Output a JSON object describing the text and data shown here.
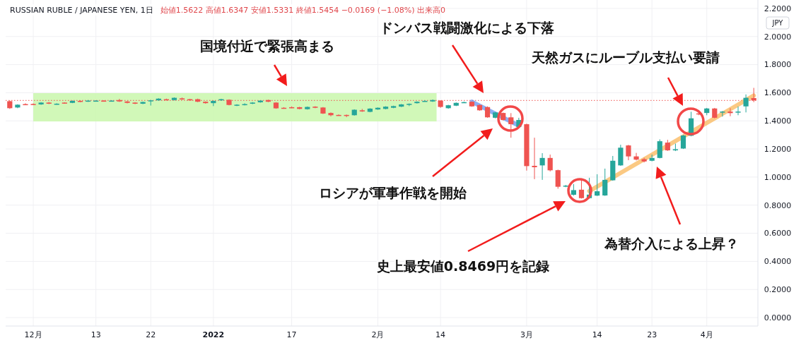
{
  "chart_data": {
    "type": "candlestick",
    "title": "RUSSIAN RUBLE / JAPANESE YEN, 1日",
    "subtitle": "始値1.5622 高値1.6347 安値1.5331 終値1.5454 −0.0169 (−1.08%) 出来高0",
    "ylabel": "JPY",
    "categories": [
      null,
      null,
      null,
      "12月",
      null,
      null,
      null,
      null,
      null,
      null,
      null,
      "13",
      null,
      null,
      null,
      null,
      null,
      null,
      "22",
      null,
      null,
      null,
      null,
      null,
      null,
      null,
      "2022",
      null,
      null,
      null,
      null,
      null,
      null,
      null,
      null,
      null,
      "17",
      null,
      null,
      null,
      null,
      null,
      null,
      null,
      null,
      null,
      null,
      "2月",
      null,
      null,
      null,
      null,
      null,
      null,
      null,
      "14",
      null,
      null,
      null,
      null,
      null,
      null,
      null,
      null,
      null,
      null,
      "3月",
      null,
      null,
      null,
      null,
      null,
      null,
      null,
      null,
      "14",
      null,
      null,
      null,
      null,
      null,
      null,
      "23",
      null,
      null,
      null,
      null,
      null,
      null,
      "4月",
      null,
      null,
      null,
      null,
      null,
      null
    ],
    "ohlc": [
      [
        1.54,
        1.545,
        1.485,
        1.49
      ],
      [
        1.495,
        1.518,
        1.49,
        1.515
      ],
      [
        1.519,
        1.525,
        1.512,
        1.518
      ],
      [
        1.52,
        1.524,
        1.514,
        1.516
      ],
      [
        1.517,
        1.533,
        1.514,
        1.53
      ],
      [
        1.53,
        1.534,
        1.519,
        1.522
      ],
      [
        1.518,
        1.525,
        1.515,
        1.522
      ],
      [
        1.53,
        1.532,
        1.523,
        1.526
      ],
      [
        1.528,
        1.545,
        1.526,
        1.542
      ],
      [
        1.542,
        1.546,
        1.533,
        1.536
      ],
      [
        1.538,
        1.548,
        1.535,
        1.544
      ],
      [
        1.541,
        1.547,
        1.538,
        1.544
      ],
      [
        1.544,
        1.547,
        1.538,
        1.541
      ],
      [
        1.54,
        1.547,
        1.537,
        1.544
      ],
      [
        1.548,
        1.556,
        1.535,
        1.538
      ],
      [
        1.538,
        1.541,
        1.524,
        1.528
      ],
      [
        1.53,
        1.533,
        1.519,
        1.522
      ],
      [
        1.522,
        1.537,
        1.519,
        1.534
      ],
      [
        1.54,
        1.549,
        1.509,
        1.546
      ],
      [
        1.546,
        1.561,
        1.543,
        1.558
      ],
      [
        1.554,
        1.558,
        1.545,
        1.548
      ],
      [
        1.548,
        1.567,
        1.545,
        1.564
      ],
      [
        1.56,
        1.566,
        1.549,
        1.552
      ],
      [
        1.554,
        1.557,
        1.543,
        1.546
      ],
      [
        1.554,
        1.558,
        1.533,
        1.536
      ],
      [
        1.536,
        1.539,
        1.522,
        1.526
      ],
      [
        1.526,
        1.545,
        1.505,
        1.542
      ],
      [
        1.546,
        1.557,
        1.543,
        1.554
      ],
      [
        1.55,
        1.553,
        1.51,
        1.513
      ],
      [
        1.509,
        1.518,
        1.505,
        1.515
      ],
      [
        1.513,
        1.525,
        1.51,
        1.519
      ],
      [
        1.522,
        1.533,
        1.519,
        1.53
      ],
      [
        1.532,
        1.547,
        1.529,
        1.544
      ],
      [
        1.548,
        1.551,
        1.533,
        1.536
      ],
      [
        1.53,
        1.533,
        1.486,
        1.489
      ],
      [
        1.493,
        1.497,
        1.486,
        1.492
      ],
      [
        1.497,
        1.503,
        1.49,
        1.496
      ],
      [
        1.497,
        1.5,
        1.482,
        1.485
      ],
      [
        1.483,
        1.502,
        1.48,
        1.499
      ],
      [
        1.501,
        1.504,
        1.49,
        1.493
      ],
      [
        1.495,
        1.498,
        1.449,
        1.452
      ],
      [
        1.456,
        1.46,
        1.432,
        1.44
      ],
      [
        1.442,
        1.446,
        1.437,
        1.441
      ],
      [
        1.442,
        1.445,
        1.426,
        1.441
      ],
      [
        1.44,
        1.482,
        1.437,
        1.479
      ],
      [
        1.475,
        1.485,
        1.464,
        1.467
      ],
      [
        1.464,
        1.49,
        1.461,
        1.487
      ],
      [
        1.481,
        1.496,
        1.478,
        1.493
      ],
      [
        1.485,
        1.504,
        1.482,
        1.501
      ],
      [
        1.493,
        1.508,
        1.49,
        1.505
      ],
      [
        1.501,
        1.52,
        1.498,
        1.517
      ],
      [
        1.52,
        1.524,
        1.505,
        1.521
      ],
      [
        1.526,
        1.539,
        1.523,
        1.536
      ],
      [
        1.541,
        1.546,
        1.538,
        1.542
      ],
      [
        1.538,
        1.552,
        1.535,
        1.548
      ],
      [
        1.544,
        1.547,
        1.493,
        1.499
      ],
      [
        1.49,
        1.514,
        1.486,
        1.511
      ],
      [
        1.508,
        1.531,
        1.505,
        1.528
      ],
      [
        1.532,
        1.537,
        1.529,
        1.533
      ],
      [
        1.536,
        1.539,
        1.5,
        1.503
      ],
      [
        1.513,
        1.516,
        1.472,
        1.475
      ],
      [
        1.498,
        1.503,
        1.422,
        1.425
      ],
      [
        1.422,
        1.463,
        1.418,
        1.46
      ],
      [
        1.456,
        1.459,
        1.402,
        1.406
      ],
      [
        1.425,
        1.455,
        1.28,
        1.376
      ],
      [
        1.357,
        1.422,
        1.352,
        1.406
      ],
      [
        1.376,
        1.38,
        1.046,
        1.078
      ],
      [
        1.08,
        1.28,
        0.985,
        1.07
      ],
      [
        1.083,
        1.17,
        0.98,
        1.136
      ],
      [
        1.136,
        1.16,
        1.04,
        1.048
      ],
      [
        1.049,
        1.053,
        0.917,
        0.931
      ],
      [
        0.933,
        0.944,
        0.928,
        0.939
      ],
      [
        0.874,
        0.95,
        0.868,
        0.907
      ],
      [
        0.91,
        0.99,
        0.8469,
        0.85
      ],
      [
        0.85,
        0.995,
        0.846,
        0.875
      ],
      [
        0.868,
        1.02,
        0.865,
        0.899
      ],
      [
        0.869,
        1.06,
        0.866,
        0.98
      ],
      [
        0.977,
        1.15,
        0.974,
        1.116
      ],
      [
        1.083,
        1.23,
        1.08,
        1.209
      ],
      [
        1.225,
        1.229,
        1.12,
        1.147
      ],
      [
        1.147,
        1.172,
        1.118,
        1.124
      ],
      [
        1.127,
        1.137,
        1.104,
        1.111
      ],
      [
        1.116,
        1.16,
        1.112,
        1.136
      ],
      [
        1.136,
        1.268,
        1.133,
        1.255
      ],
      [
        1.245,
        1.265,
        1.186,
        1.19
      ],
      [
        1.19,
        1.238,
        1.185,
        1.198
      ],
      [
        1.203,
        1.3,
        1.2,
        1.296
      ],
      [
        1.294,
        1.465,
        1.29,
        1.418
      ],
      [
        1.453,
        1.475,
        1.44,
        1.448
      ],
      [
        1.456,
        1.492,
        1.44,
        1.488
      ],
      [
        1.488,
        1.492,
        1.418,
        1.422
      ],
      [
        1.46,
        1.47,
        1.43,
        1.466
      ],
      [
        1.466,
        1.49,
        1.433,
        1.455
      ],
      [
        1.46,
        1.502,
        1.44,
        1.466
      ],
      [
        1.503,
        1.588,
        1.46,
        1.564
      ],
      [
        1.5622,
        1.6347,
        1.5331,
        1.5454
      ]
    ],
    "colors": [
      "#ef5350",
      "#26a69a",
      "#ef5350",
      "#ef5350",
      "#26a69a",
      "#ef5350",
      "#26a69a",
      "#ef5350",
      "#26a69a",
      "#ef5350",
      "#26a69a",
      "#26a69a",
      "#ef5350",
      "#26a69a",
      "#ef5350",
      "#ef5350",
      "#ef5350",
      "#26a69a",
      "#26a69a",
      "#26a69a",
      "#ef5350",
      "#26a69a",
      "#ef5350",
      "#ef5350",
      "#ef5350",
      "#ef5350",
      "#26a69a",
      "#26a69a",
      "#ef5350",
      "#26a69a",
      "#26a69a",
      "#26a69a",
      "#26a69a",
      "#ef5350",
      "#ef5350",
      "#ef5350",
      "#ef5350",
      "#ef5350",
      "#26a69a",
      "#ef5350",
      "#ef5350",
      "#ef5350",
      "#ef5350",
      "#ef5350",
      "#26a69a",
      "#ef5350",
      "#26a69a",
      "#26a69a",
      "#26a69a",
      "#26a69a",
      "#26a69a",
      "#26a69a",
      "#26a69a",
      "#26a69a",
      "#26a69a",
      "#ef5350",
      "#26a69a",
      "#26a69a",
      "#26a69a",
      "#ef5350",
      "#ef5350",
      "#ef5350",
      "#26a69a",
      "#ef5350",
      "#ef5350",
      "#26a69a",
      "#ef5350",
      "#ef5350",
      "#26a69a",
      "#ef5350",
      "#ef5350",
      "#26a69a",
      "#26a69a",
      "#ef5350",
      "#26a69a",
      "#26a69a",
      "#26a69a",
      "#26a69a",
      "#26a69a",
      "#ef5350",
      "#ef5350",
      "#ef5350",
      "#26a69a",
      "#26a69a",
      "#ef5350",
      "#26a69a",
      "#26a69a",
      "#26a69a",
      "#ef5350",
      "#26a69a",
      "#ef5350",
      "#26a69a",
      "#ef5350",
      "#26a69a",
      "#26a69a",
      "#ef5350"
    ],
    "series": [
      {
        "type": "line",
        "color": "#5b8def",
        "values": [
          null,
          null,
          null,
          null,
          null,
          null,
          null,
          null,
          null,
          null,
          null,
          null,
          null,
          null,
          null,
          null,
          null,
          null,
          null,
          null,
          null,
          null,
          null,
          null,
          null,
          null,
          null,
          null,
          null,
          null,
          null,
          null,
          null,
          null,
          null,
          null,
          null,
          null,
          null,
          null,
          null,
          null,
          null,
          null,
          null,
          null,
          null,
          null,
          null,
          null,
          null,
          null,
          null,
          null,
          null,
          null,
          null,
          null,
          null,
          1.536,
          null,
          null,
          null,
          null,
          null,
          1.366,
          null,
          null,
          null,
          null,
          null,
          null,
          null,
          null,
          null,
          null,
          null,
          null,
          null,
          null,
          null,
          null,
          null,
          null,
          null,
          null,
          null,
          null,
          null,
          null,
          null,
          null,
          null,
          null,
          null,
          null
        ]
      },
      {
        "type": "line",
        "color": "#f9b24e",
        "values": [
          null,
          null,
          null,
          null,
          null,
          null,
          null,
          null,
          null,
          null,
          null,
          null,
          null,
          null,
          null,
          null,
          null,
          null,
          null,
          null,
          null,
          null,
          null,
          null,
          null,
          null,
          null,
          null,
          null,
          null,
          null,
          null,
          null,
          null,
          null,
          null,
          null,
          null,
          null,
          null,
          null,
          null,
          null,
          null,
          null,
          null,
          null,
          null,
          null,
          null,
          null,
          null,
          null,
          null,
          null,
          null,
          null,
          null,
          null,
          null,
          null,
          null,
          null,
          null,
          null,
          null,
          null,
          null,
          null,
          null,
          null,
          null,
          null,
          null,
          0.9,
          null,
          null,
          null,
          null,
          null,
          null,
          null,
          null,
          null,
          null,
          null,
          null,
          null,
          null,
          null,
          null,
          null,
          null,
          null,
          null,
          1.58
        ]
      }
    ],
    "ylim": [
      -0.06,
      2.26
    ],
    "yticks": [
      {
        "value": 0,
        "label": "0.0000"
      },
      {
        "value": 0.2,
        "label": "0.2000"
      },
      {
        "value": 0.4,
        "label": "0.4000"
      },
      {
        "value": 0.6,
        "label": "0.6000"
      },
      {
        "value": 0.8,
        "label": "0.8000"
      },
      {
        "value": 1,
        "label": "1.0000"
      },
      {
        "value": 1.2,
        "label": "1.2000"
      },
      {
        "value": 1.4,
        "label": "1.4000"
      },
      {
        "value": 1.6,
        "label": "1.6000"
      },
      {
        "value": 1.8,
        "label": "1.8000"
      },
      {
        "value": 2,
        "label": "2.0000"
      },
      {
        "value": 2.2,
        "label": "2.2000"
      }
    ],
    "grid": true,
    "ref_lines": [
      {
        "axis": "y",
        "value": 1.5454,
        "color": "#ef5350",
        "line_style": "dotted"
      }
    ],
    "bands": [
      {
        "axis": "x",
        "from": "12月",
        "to": "14",
        "color": "#ccf7b0"
      }
    ],
    "annotations": [
      "国境付近で緊張高まる",
      "ドンバス戦闘激化による下落",
      "天然ガスにルーブル支払い要請",
      "ロシアが軍事作戦を開始",
      "史上最安値0.8469円を記録",
      "為替介入による上昇？"
    ]
  }
}
